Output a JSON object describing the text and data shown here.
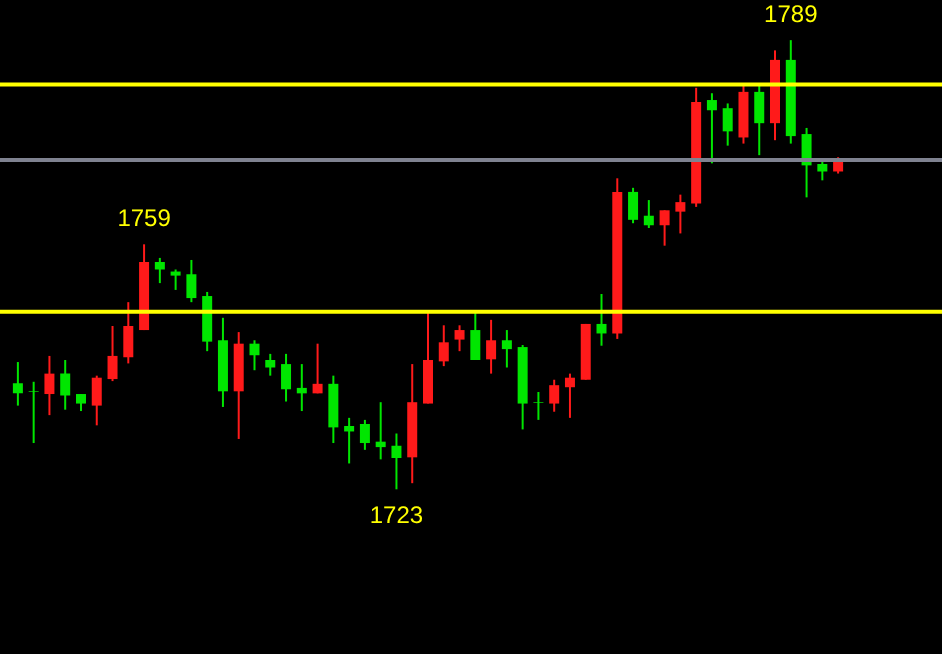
{
  "chart_data": {
    "type": "candlestick",
    "categories": [
      null,
      null,
      null,
      null,
      null,
      null,
      null,
      null,
      null,
      null,
      null,
      null,
      null,
      null,
      null,
      null,
      null,
      null,
      null,
      null,
      null,
      null,
      null,
      null,
      null,
      null,
      null,
      null,
      null,
      null,
      null,
      null,
      null,
      null,
      null,
      null,
      null,
      null,
      null,
      null,
      null,
      null,
      null,
      null,
      null,
      null,
      null,
      null,
      null,
      null,
      null,
      null,
      null
    ],
    "ohlc": [
      [
        1738.6,
        1741.7,
        1735.3,
        1737.1
      ],
      [
        1737.4,
        1738.8,
        1729.8,
        1737.3
      ],
      [
        1737.0,
        1742.6,
        1733.9,
        1740.0
      ],
      [
        1740.0,
        1742.0,
        1734.7,
        1736.8
      ],
      [
        1737.0,
        1737.0,
        1734.5,
        1735.6
      ],
      [
        1735.3,
        1739.7,
        1732.4,
        1739.4
      ],
      [
        1739.2,
        1747.0,
        1738.9,
        1742.6
      ],
      [
        1742.4,
        1750.5,
        1741.5,
        1747.0
      ],
      [
        1746.4,
        1759.0,
        1746.4,
        1756.4
      ],
      [
        1756.4,
        1757.0,
        1753.3,
        1755.3
      ],
      [
        1755.0,
        1755.3,
        1752.3,
        1754.4
      ],
      [
        1754.6,
        1756.7,
        1750.5,
        1751.1
      ],
      [
        1751.4,
        1752.0,
        1743.3,
        1744.7
      ],
      [
        1744.9,
        1748.2,
        1735.1,
        1737.4
      ],
      [
        1737.4,
        1746.1,
        1730.4,
        1744.4
      ],
      [
        1744.4,
        1744.9,
        1740.5,
        1742.7
      ],
      [
        1742.0,
        1742.9,
        1739.7,
        1740.9
      ],
      [
        1741.4,
        1742.9,
        1735.9,
        1737.7
      ],
      [
        1737.9,
        1741.4,
        1734.5,
        1737.1
      ],
      [
        1737.1,
        1744.4,
        1737.1,
        1738.5
      ],
      [
        1738.5,
        1739.7,
        1729.8,
        1732.1
      ],
      [
        1732.3,
        1733.5,
        1726.8,
        1731.5
      ],
      [
        1732.6,
        1733.2,
        1728.8,
        1729.8
      ],
      [
        1730.0,
        1735.8,
        1727.4,
        1729.2
      ],
      [
        1729.4,
        1731.2,
        1723.0,
        1727.6
      ],
      [
        1727.7,
        1741.4,
        1723.9,
        1735.8
      ],
      [
        1735.6,
        1748.9,
        1735.6,
        1742.0
      ],
      [
        1741.8,
        1747.1,
        1741.1,
        1744.6
      ],
      [
        1745.0,
        1747.1,
        1743.3,
        1746.4
      ],
      [
        1746.4,
        1748.9,
        1742.0,
        1742.0
      ],
      [
        1742.1,
        1747.9,
        1740.0,
        1744.9
      ],
      [
        1744.9,
        1746.4,
        1740.9,
        1743.6
      ],
      [
        1743.9,
        1744.2,
        1731.8,
        1735.6
      ],
      [
        1735.8,
        1737.3,
        1733.2,
        1735.7
      ],
      [
        1735.6,
        1739.1,
        1734.4,
        1738.3
      ],
      [
        1738.0,
        1740.0,
        1733.5,
        1739.4
      ],
      [
        1739.1,
        1747.3,
        1739.1,
        1747.3
      ],
      [
        1747.3,
        1751.7,
        1744.1,
        1745.9
      ],
      [
        1745.9,
        1768.7,
        1745.1,
        1766.7
      ],
      [
        1766.7,
        1767.3,
        1762.1,
        1762.6
      ],
      [
        1763.2,
        1765.5,
        1761.4,
        1761.8
      ],
      [
        1761.8,
        1764.0,
        1758.8,
        1764.0
      ],
      [
        1763.8,
        1766.3,
        1760.6,
        1765.2
      ],
      [
        1765.0,
        1782.0,
        1764.5,
        1779.9
      ],
      [
        1780.2,
        1781.2,
        1770.9,
        1778.7
      ],
      [
        1779.0,
        1779.7,
        1773.5,
        1775.6
      ],
      [
        1774.7,
        1782.3,
        1773.8,
        1781.4
      ],
      [
        1781.4,
        1782.3,
        1772.1,
        1776.8
      ],
      [
        1776.8,
        1787.5,
        1774.3,
        1786.1
      ],
      [
        1786.1,
        1789.0,
        1773.8,
        1774.9
      ],
      [
        1775.2,
        1776.1,
        1765.9,
        1770.6
      ],
      [
        1770.8,
        1771.4,
        1768.4,
        1769.7
      ],
      [
        1769.7,
        1771.8,
        1769.4,
        1771.4
      ]
    ],
    "colors": [
      "#00e600",
      "#00e600",
      "#ff1a1a",
      "#00e600",
      "#00e600",
      "#ff1a1a",
      "#ff1a1a",
      "#ff1a1a",
      "#ff1a1a",
      "#00e600",
      "#00e600",
      "#00e600",
      "#00e600",
      "#00e600",
      "#ff1a1a",
      "#00e600",
      "#00e600",
      "#00e600",
      "#00e600",
      "#ff1a1a",
      "#00e600",
      "#00e600",
      "#00e600",
      "#00e600",
      "#00e600",
      "#ff1a1a",
      "#ff1a1a",
      "#ff1a1a",
      "#ff1a1a",
      "#00e600",
      "#ff1a1a",
      "#00e600",
      "#00e600",
      "#00e600",
      "#ff1a1a",
      "#ff1a1a",
      "#ff1a1a",
      "#00e600",
      "#ff1a1a",
      "#00e600",
      "#00e600",
      "#ff1a1a",
      "#ff1a1a",
      "#ff1a1a",
      "#00e600",
      "#00e600",
      "#ff1a1a",
      "#00e600",
      "#ff1a1a",
      "#00e600",
      "#00e600",
      "#00e600",
      "#ff1a1a"
    ],
    "ylim": [
      1698.8,
      1794.9
    ],
    "ref_lines": [
      {
        "axis": "y",
        "value": 1782.5,
        "color": "#ffff00"
      },
      {
        "axis": "y",
        "value": 1749.1,
        "color": "#ffff00"
      },
      {
        "axis": "y",
        "value": 1771.4,
        "color": "#7f8290"
      }
    ],
    "annotations": [
      {
        "text": "1759",
        "y": 1759.0
      },
      {
        "text": "1723",
        "y": 1723.0
      },
      {
        "text": "1789",
        "y": 1789.0
      }
    ],
    "tick_labels": false
  }
}
